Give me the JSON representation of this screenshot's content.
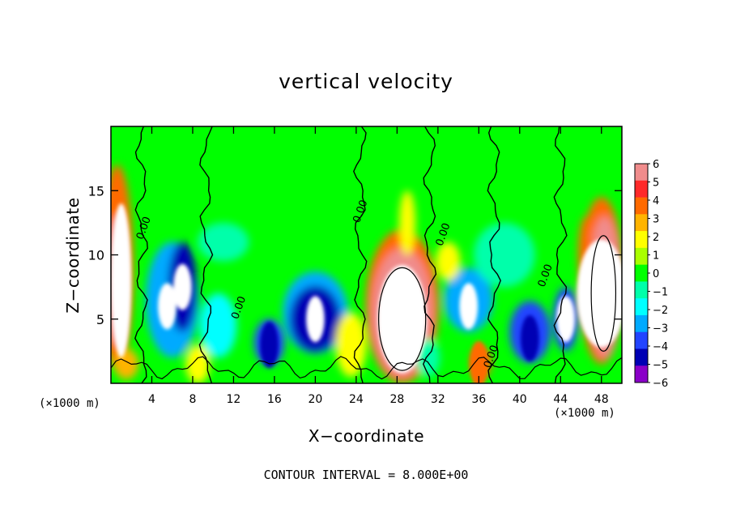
{
  "chart_data": {
    "type": "heatmap",
    "title": "vertical velocity",
    "xlabel": "X−coordinate",
    "ylabel": "Z−coordinate",
    "x_unit_left": "(×1000 m)",
    "x_unit_right": "(×1000 m)",
    "footer": "CONTOUR INTERVAL = 8.000E+00",
    "xlim": [
      0,
      50
    ],
    "ylim": [
      0,
      20
    ],
    "xticks": [
      4,
      8,
      12,
      16,
      20,
      24,
      28,
      32,
      36,
      40,
      44,
      48
    ],
    "yticks": [
      5,
      10,
      15
    ],
    "zero_contour_labels": [
      {
        "text": "0.00",
        "x": 3.5,
        "z": 12.0
      },
      {
        "text": "0.00",
        "x": 24.7,
        "z": 13.3
      },
      {
        "text": "0.00",
        "x": 32.8,
        "z": 11.5
      },
      {
        "text": "0.00",
        "x": 42.8,
        "z": 8.3
      },
      {
        "text": "0.00",
        "x": 37.5,
        "z": 2.0
      },
      {
        "text": "0.00",
        "x": 12.8,
        "z": 5.8
      }
    ],
    "colorbar": {
      "min": -6,
      "max": 6,
      "tick_labels": [
        "6",
        "5",
        "4",
        "3",
        "2",
        "1",
        "0",
        "−1",
        "−2",
        "−3",
        "−4",
        "−5",
        "−6"
      ],
      "colors": [
        "#f08c8c",
        "#ff2a2a",
        "#ff6a00",
        "#ffb400",
        "#ffff00",
        "#aaff00",
        "#00ff00",
        "#00ffaa",
        "#00ffff",
        "#00aaff",
        "#2244ff",
        "#0000b4",
        "#8a00c8"
      ]
    },
    "features": [
      {
        "x": 1,
        "z": 8,
        "w": 10,
        "type": "updraft-column"
      },
      {
        "x": 28.5,
        "z": 5,
        "w": 16,
        "type": "updraft-core"
      },
      {
        "x": 48,
        "z": 7,
        "w": 14,
        "type": "updraft-core"
      },
      {
        "x": 5.5,
        "z": 6,
        "w": -7,
        "type": "downdraft"
      },
      {
        "x": 7,
        "z": 7.5,
        "w": -8,
        "type": "downdraft"
      },
      {
        "x": 20,
        "z": 5,
        "w": -9,
        "type": "downdraft"
      },
      {
        "x": 35,
        "z": 6,
        "w": -7,
        "type": "downdraft"
      },
      {
        "x": 41,
        "z": 3.5,
        "w": -5,
        "type": "downdraft"
      },
      {
        "x": 44.5,
        "z": 5,
        "w": -7,
        "type": "downdraft"
      },
      {
        "x": 36,
        "z": 1.5,
        "w": 4,
        "type": "updraft"
      },
      {
        "x": 15.5,
        "z": 3,
        "w": -5,
        "type": "downdraft"
      }
    ]
  }
}
